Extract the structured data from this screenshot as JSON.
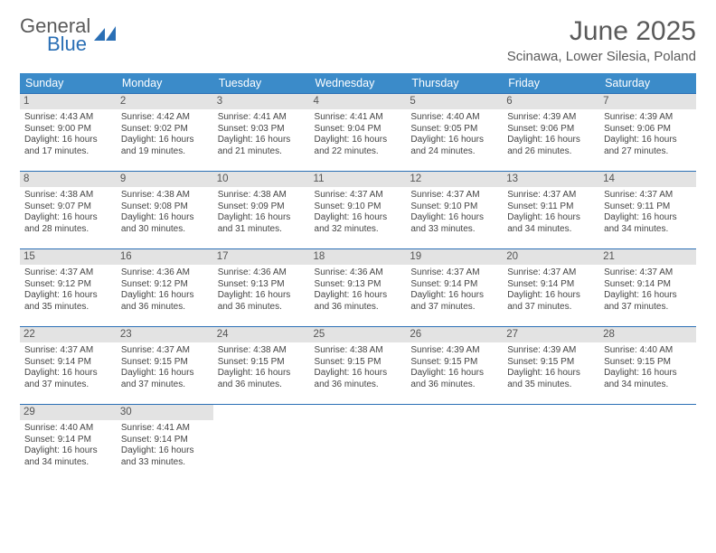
{
  "brand": {
    "word1": "General",
    "word2": "Blue"
  },
  "title": "June 2025",
  "subtitle": "Scinawa, Lower Silesia, Poland",
  "colors": {
    "header_bg": "#3b8bc9",
    "border": "#2a6fb5",
    "daynum_bg": "#e3e3e3",
    "text": "#444444",
    "brand_gray": "#5a5a5a",
    "brand_blue": "#2a6fb5"
  },
  "weekdays": [
    "Sunday",
    "Monday",
    "Tuesday",
    "Wednesday",
    "Thursday",
    "Friday",
    "Saturday"
  ],
  "weeks": [
    [
      {
        "n": "1",
        "sr": "4:43 AM",
        "ss": "9:00 PM",
        "dl": "16 hours and 17 minutes."
      },
      {
        "n": "2",
        "sr": "4:42 AM",
        "ss": "9:02 PM",
        "dl": "16 hours and 19 minutes."
      },
      {
        "n": "3",
        "sr": "4:41 AM",
        "ss": "9:03 PM",
        "dl": "16 hours and 21 minutes."
      },
      {
        "n": "4",
        "sr": "4:41 AM",
        "ss": "9:04 PM",
        "dl": "16 hours and 22 minutes."
      },
      {
        "n": "5",
        "sr": "4:40 AM",
        "ss": "9:05 PM",
        "dl": "16 hours and 24 minutes."
      },
      {
        "n": "6",
        "sr": "4:39 AM",
        "ss": "9:06 PM",
        "dl": "16 hours and 26 minutes."
      },
      {
        "n": "7",
        "sr": "4:39 AM",
        "ss": "9:06 PM",
        "dl": "16 hours and 27 minutes."
      }
    ],
    [
      {
        "n": "8",
        "sr": "4:38 AM",
        "ss": "9:07 PM",
        "dl": "16 hours and 28 minutes."
      },
      {
        "n": "9",
        "sr": "4:38 AM",
        "ss": "9:08 PM",
        "dl": "16 hours and 30 minutes."
      },
      {
        "n": "10",
        "sr": "4:38 AM",
        "ss": "9:09 PM",
        "dl": "16 hours and 31 minutes."
      },
      {
        "n": "11",
        "sr": "4:37 AM",
        "ss": "9:10 PM",
        "dl": "16 hours and 32 minutes."
      },
      {
        "n": "12",
        "sr": "4:37 AM",
        "ss": "9:10 PM",
        "dl": "16 hours and 33 minutes."
      },
      {
        "n": "13",
        "sr": "4:37 AM",
        "ss": "9:11 PM",
        "dl": "16 hours and 34 minutes."
      },
      {
        "n": "14",
        "sr": "4:37 AM",
        "ss": "9:11 PM",
        "dl": "16 hours and 34 minutes."
      }
    ],
    [
      {
        "n": "15",
        "sr": "4:37 AM",
        "ss": "9:12 PM",
        "dl": "16 hours and 35 minutes."
      },
      {
        "n": "16",
        "sr": "4:36 AM",
        "ss": "9:12 PM",
        "dl": "16 hours and 36 minutes."
      },
      {
        "n": "17",
        "sr": "4:36 AM",
        "ss": "9:13 PM",
        "dl": "16 hours and 36 minutes."
      },
      {
        "n": "18",
        "sr": "4:36 AM",
        "ss": "9:13 PM",
        "dl": "16 hours and 36 minutes."
      },
      {
        "n": "19",
        "sr": "4:37 AM",
        "ss": "9:14 PM",
        "dl": "16 hours and 37 minutes."
      },
      {
        "n": "20",
        "sr": "4:37 AM",
        "ss": "9:14 PM",
        "dl": "16 hours and 37 minutes."
      },
      {
        "n": "21",
        "sr": "4:37 AM",
        "ss": "9:14 PM",
        "dl": "16 hours and 37 minutes."
      }
    ],
    [
      {
        "n": "22",
        "sr": "4:37 AM",
        "ss": "9:14 PM",
        "dl": "16 hours and 37 minutes."
      },
      {
        "n": "23",
        "sr": "4:37 AM",
        "ss": "9:15 PM",
        "dl": "16 hours and 37 minutes."
      },
      {
        "n": "24",
        "sr": "4:38 AM",
        "ss": "9:15 PM",
        "dl": "16 hours and 36 minutes."
      },
      {
        "n": "25",
        "sr": "4:38 AM",
        "ss": "9:15 PM",
        "dl": "16 hours and 36 minutes."
      },
      {
        "n": "26",
        "sr": "4:39 AM",
        "ss": "9:15 PM",
        "dl": "16 hours and 36 minutes."
      },
      {
        "n": "27",
        "sr": "4:39 AM",
        "ss": "9:15 PM",
        "dl": "16 hours and 35 minutes."
      },
      {
        "n": "28",
        "sr": "4:40 AM",
        "ss": "9:15 PM",
        "dl": "16 hours and 34 minutes."
      }
    ],
    [
      {
        "n": "29",
        "sr": "4:40 AM",
        "ss": "9:14 PM",
        "dl": "16 hours and 34 minutes."
      },
      {
        "n": "30",
        "sr": "4:41 AM",
        "ss": "9:14 PM",
        "dl": "16 hours and 33 minutes."
      },
      null,
      null,
      null,
      null,
      null
    ]
  ],
  "labels": {
    "sunrise": "Sunrise: ",
    "sunset": "Sunset: ",
    "daylight": "Daylight: "
  }
}
